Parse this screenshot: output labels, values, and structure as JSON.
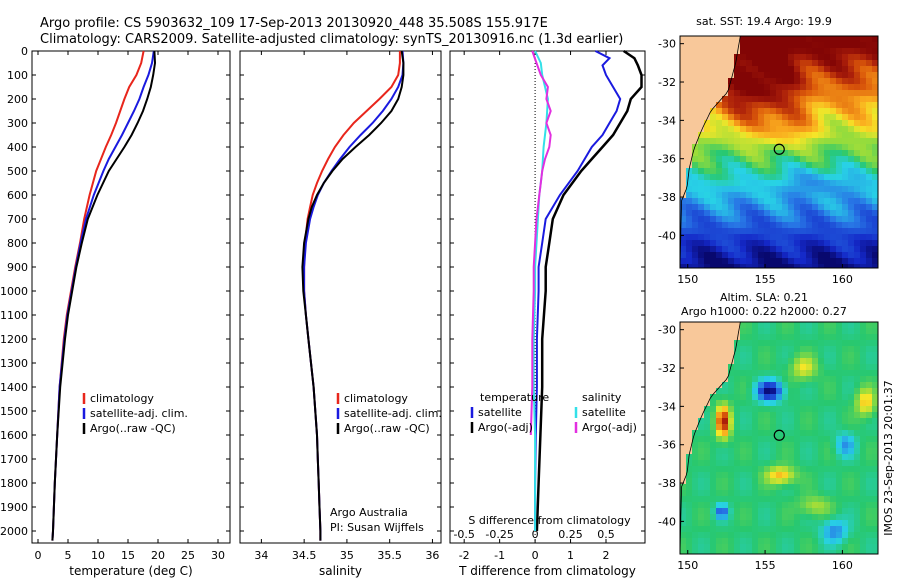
{
  "header": {
    "line1": "Argo profile: CS 5903632_109 17-Sep-2013 20130920_448 35.508S 155.917E",
    "line2": "Climatology: CARS2009. Satellite-adjusted climatology: synTS_20130916.nc (1.3d earlier)"
  },
  "colors": {
    "clim": "#e8261c",
    "sat": "#1a1adf",
    "argo": "#000000",
    "sat_s": "#33e0e8",
    "argo_s": "#e22fe0",
    "land": "#f8c89a"
  },
  "side": {
    "credit": "IMOS 23-Sep-2013 20:01:37"
  },
  "chart_data": [
    {
      "type": "line",
      "id": "temperature",
      "xlabel": "temperature (deg C)",
      "ylabel": "",
      "xlim": [
        -1,
        32
      ],
      "ylim": [
        2050,
        0
      ],
      "x_ticks": [
        "0",
        "5",
        "10",
        "15",
        "20",
        "25",
        "30"
      ],
      "y_ticks": [
        "0",
        "100",
        "200",
        "300",
        "400",
        "500",
        "600",
        "700",
        "800",
        "900",
        "1000",
        "1100",
        "1200",
        "1300",
        "1400",
        "1500",
        "1600",
        "1700",
        "1800",
        "1900",
        "2000"
      ],
      "legend": [
        "climatology",
        "satellite-adj. clim.",
        "Argo(..raw -QC)"
      ],
      "series": [
        {
          "name": "climatology",
          "depth": [
            0,
            50,
            100,
            150,
            200,
            250,
            300,
            350,
            400,
            450,
            500,
            600,
            700,
            800,
            900,
            1000,
            1100,
            1200,
            1400,
            1600,
            1800,
            2000,
            2040
          ],
          "values": [
            17.6,
            17.2,
            16.4,
            15.2,
            14.4,
            13.7,
            13.0,
            12.2,
            11.3,
            10.5,
            9.7,
            8.6,
            7.7,
            7.0,
            6.2,
            5.5,
            4.8,
            4.3,
            3.6,
            3.2,
            2.8,
            2.5,
            2.4
          ]
        },
        {
          "name": "satellite-adj. clim.",
          "depth": [
            0,
            50,
            100,
            150,
            200,
            250,
            300,
            350,
            400,
            450,
            500,
            600,
            700,
            800,
            900,
            1000,
            1100,
            1200,
            1400,
            1600,
            1800,
            2000,
            2040
          ],
          "values": [
            19.3,
            19.0,
            18.4,
            17.6,
            16.9,
            16.0,
            15.0,
            14.0,
            12.9,
            11.8,
            10.9,
            9.3,
            8.0,
            7.1,
            6.3,
            5.6,
            4.9,
            4.4,
            3.6,
            3.2,
            2.8,
            2.5,
            2.4
          ]
        },
        {
          "name": "Argo(..raw -QC)",
          "depth": [
            0,
            50,
            100,
            150,
            200,
            250,
            300,
            350,
            400,
            450,
            500,
            600,
            700,
            800,
            900,
            1000,
            1100,
            1200,
            1400,
            1600,
            1800,
            2000,
            2040
          ],
          "values": [
            19.4,
            19.5,
            19.2,
            18.8,
            18.2,
            17.5,
            16.6,
            15.6,
            14.4,
            13.1,
            11.8,
            9.9,
            8.3,
            7.3,
            6.4,
            5.7,
            5.0,
            4.5,
            3.7,
            3.2,
            2.8,
            2.5,
            2.4
          ]
        }
      ]
    },
    {
      "type": "line",
      "id": "salinity",
      "xlabel": "salinity",
      "xlim": [
        33.75,
        36.1
      ],
      "ylim": [
        2050,
        0
      ],
      "x_ticks": [
        "34",
        "34.5",
        "35",
        "35.5",
        "36"
      ],
      "legend": [
        "climatology",
        "satellite-adj. clim.",
        "Argo(..raw -QC)"
      ],
      "annotation": [
        "Argo Australia",
        "PI: Susan Wijffels"
      ],
      "series": [
        {
          "name": "climatology",
          "depth": [
            0,
            50,
            100,
            150,
            200,
            250,
            300,
            350,
            400,
            450,
            500,
            550,
            600,
            650,
            700,
            800,
            900,
            1000,
            1100,
            1200,
            1300,
            1400,
            1500,
            1600,
            1700,
            1800,
            1900,
            2000,
            2040
          ],
          "values": [
            35.62,
            35.62,
            35.6,
            35.52,
            35.38,
            35.23,
            35.08,
            34.96,
            34.86,
            34.78,
            34.71,
            34.65,
            34.6,
            34.57,
            34.54,
            34.51,
            34.5,
            34.5,
            34.52,
            34.55,
            34.58,
            34.61,
            34.63,
            34.65,
            34.66,
            34.67,
            34.68,
            34.69,
            34.69
          ]
        },
        {
          "name": "satellite-adj. clim.",
          "depth": [
            0,
            50,
            100,
            150,
            200,
            250,
            300,
            350,
            400,
            450,
            500,
            550,
            600,
            650,
            700,
            800,
            900,
            1000,
            1100,
            1200,
            1300,
            1400,
            1500,
            1600,
            1700,
            1800,
            1900,
            2000,
            2040
          ],
          "values": [
            35.65,
            35.66,
            35.65,
            35.6,
            35.52,
            35.42,
            35.3,
            35.16,
            35.03,
            34.92,
            34.82,
            34.73,
            34.66,
            34.61,
            34.57,
            34.52,
            34.5,
            34.5,
            34.52,
            34.55,
            34.58,
            34.61,
            34.63,
            34.65,
            34.66,
            34.67,
            34.68,
            34.69,
            34.69
          ]
        },
        {
          "name": "Argo(..raw -QC)",
          "depth": [
            0,
            50,
            100,
            150,
            200,
            250,
            300,
            350,
            400,
            450,
            500,
            550,
            600,
            650,
            700,
            800,
            900,
            1000,
            1100,
            1200,
            1300,
            1400,
            1500,
            1600,
            1700,
            1800,
            1900,
            2000,
            2040
          ],
          "values": [
            35.64,
            35.66,
            35.66,
            35.64,
            35.6,
            35.52,
            35.4,
            35.26,
            35.1,
            34.95,
            34.83,
            34.73,
            34.65,
            34.59,
            34.55,
            34.5,
            34.48,
            34.49,
            34.52,
            34.55,
            34.58,
            34.61,
            34.63,
            34.65,
            34.66,
            34.67,
            34.68,
            34.69,
            34.69
          ]
        }
      ]
    },
    {
      "type": "line",
      "id": "difference",
      "xlabel": "T difference from climatology",
      "xlabel_top": "S difference from climatology",
      "xlim": [
        -2.4,
        3.1
      ],
      "ylim": [
        2050,
        0
      ],
      "x_ticks": [
        "-2",
        "-1",
        "0",
        "1",
        "2"
      ],
      "x_ticks_top": [
        "-0.5",
        "-0.25",
        "0",
        "0.25",
        "0.5"
      ],
      "legend_left_title": "temperature",
      "legend_right_title": "salinity",
      "legend": [
        "satellite",
        "Argo(-adj)",
        "satellite",
        "Argo(-adj)"
      ],
      "series": [
        {
          "name": "T satellite",
          "depth": [
            0,
            30,
            60,
            100,
            150,
            200,
            250,
            300,
            350,
            400,
            500,
            600,
            700,
            800,
            900,
            1000,
            1200,
            1400,
            1600,
            1800,
            2000
          ],
          "values": [
            1.7,
            2.1,
            1.9,
            2.0,
            2.2,
            2.4,
            2.3,
            2.1,
            1.9,
            1.6,
            1.2,
            0.7,
            0.3,
            0.2,
            0.1,
            0.1,
            0.05,
            0.05,
            0.02,
            0.0,
            0.0
          ]
        },
        {
          "name": "T Argo(-adj)",
          "depth": [
            0,
            30,
            60,
            100,
            150,
            200,
            250,
            300,
            350,
            400,
            450,
            500,
            600,
            700,
            800,
            900,
            1000,
            1200,
            1400,
            1600,
            1800,
            2000
          ],
          "values": [
            2.5,
            2.8,
            2.9,
            3.0,
            3.0,
            2.7,
            2.6,
            2.4,
            2.2,
            1.9,
            1.6,
            1.3,
            0.8,
            0.5,
            0.4,
            0.3,
            0.3,
            0.2,
            0.2,
            0.15,
            0.1,
            0.05
          ]
        },
        {
          "name": "S satellite",
          "depth": [
            0,
            50,
            100,
            200,
            300,
            400,
            500,
            600,
            700,
            800,
            900,
            1000,
            1200,
            1400,
            1600,
            1800,
            2000
          ],
          "values": [
            0.0,
            0.04,
            0.05,
            0.09,
            0.08,
            0.06,
            0.05,
            0.03,
            0.02,
            0.01,
            0.0,
            0.0,
            -0.01,
            -0.01,
            0.0,
            0.0,
            0.0
          ]
        },
        {
          "name": "S Argo(-adj)",
          "depth": [
            0,
            50,
            100,
            150,
            200,
            250,
            300,
            350,
            400,
            450,
            500,
            550,
            600,
            700,
            800,
            900,
            1000,
            1200,
            1400,
            1600
          ],
          "values": [
            -0.02,
            0.01,
            0.04,
            0.09,
            0.08,
            0.11,
            0.08,
            0.11,
            0.1,
            0.07,
            0.05,
            0.04,
            0.03,
            0.01,
            0.0,
            -0.01,
            -0.01,
            -0.02,
            -0.02,
            -0.03
          ]
        }
      ]
    },
    {
      "type": "heatmap",
      "id": "sst_map",
      "title": "sat. SST: 19.4  Argo: 19.9",
      "xlim": [
        149.5,
        162.3
      ],
      "ylim": [
        -41.7,
        -29.6
      ],
      "x_ticks": [
        "150",
        "155",
        "160"
      ],
      "y_ticks": [
        "-30",
        "-32",
        "-34",
        "-36",
        "-38",
        "-40"
      ],
      "argo_lon": 155.917,
      "argo_lat": -35.508
    },
    {
      "type": "heatmap",
      "id": "sla_map",
      "title_line1": "Altim. SLA: 0.21",
      "title_line2": "Argo h1000: 0.22  h2000: 0.27",
      "xlim": [
        149.5,
        162.3
      ],
      "ylim": [
        -41.7,
        -29.6
      ],
      "x_ticks": [
        "150",
        "155",
        "160"
      ],
      "y_ticks": [
        "-30",
        "-32",
        "-34",
        "-36",
        "-38",
        "-40"
      ],
      "argo_lon": 155.917,
      "argo_lat": -35.508
    }
  ]
}
